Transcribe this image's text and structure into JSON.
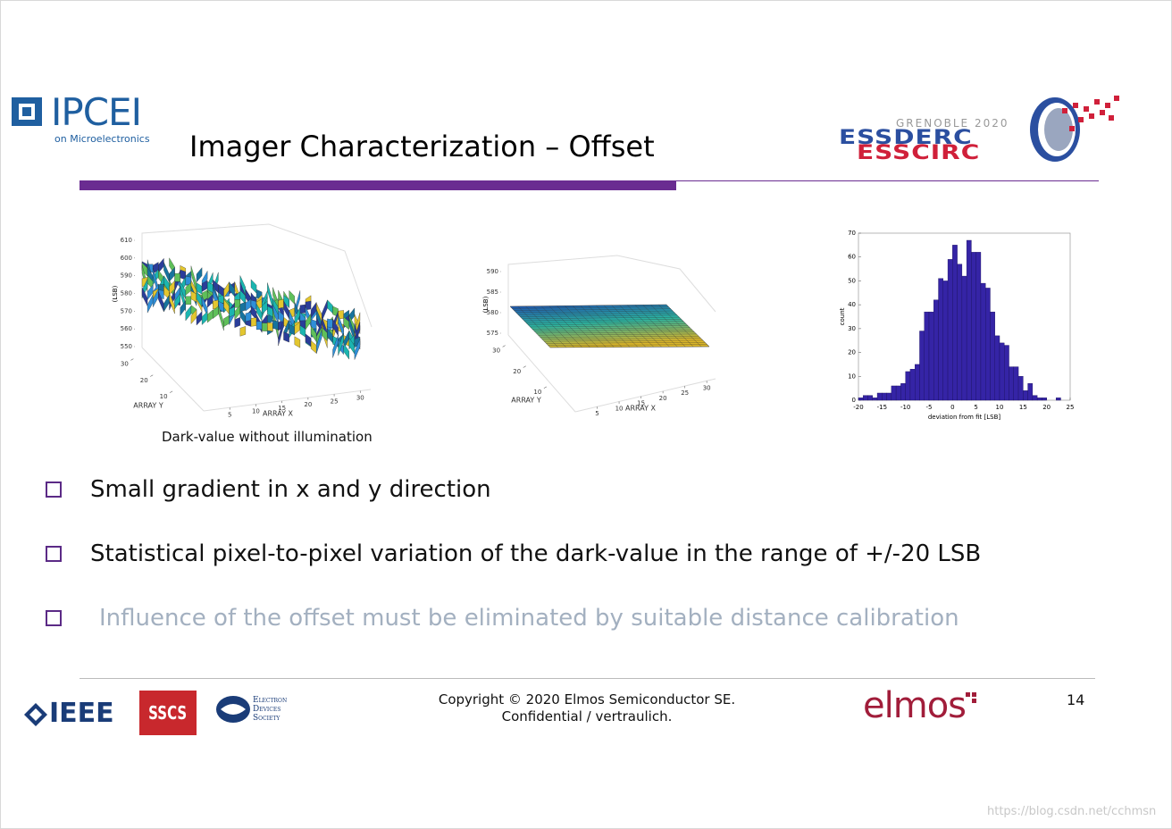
{
  "header": {
    "logo_left": {
      "name": "IPCEI",
      "subtitle": "on Microelectronics"
    },
    "title": "Imager Characterization – Offset",
    "logo_right": {
      "location": "GRENOBLE 2020",
      "line1": "ESSDERC",
      "line2": "ESSCIRC"
    }
  },
  "figures": [
    {
      "type": "surface",
      "zlabel": "(LSB)",
      "xlabel": "ARRAY X",
      "ylabel": "ARRAY Y",
      "zlim": [
        550,
        610
      ],
      "zticks": [
        550,
        560,
        570,
        580,
        590,
        600,
        610
      ],
      "xlim": [
        0,
        32
      ],
      "xticks": [
        5,
        10,
        15,
        20,
        25,
        30
      ],
      "ylim": [
        0,
        32
      ],
      "yticks": [
        10,
        20,
        30
      ]
    },
    {
      "type": "plane",
      "zlabel": "(LSB)",
      "xlabel": "ARRAY X",
      "ylabel": "ARRAY Y",
      "zlim": [
        575,
        590
      ],
      "zticks": [
        575,
        580,
        585,
        590
      ],
      "xlim": [
        0,
        32
      ],
      "xticks": [
        5,
        10,
        15,
        20,
        25,
        30
      ],
      "ylim": [
        0,
        32
      ],
      "yticks": [
        10,
        20,
        30
      ]
    }
  ],
  "caption": "Dark-value without illumination",
  "chart_data": {
    "type": "histogram",
    "xlabel": "deviation from fit [LSB]",
    "ylabel": "count",
    "bins": [
      -20,
      -19,
      -18,
      -17,
      -16,
      -15,
      -14,
      -13,
      -12,
      -11,
      -10,
      -9,
      -8,
      -7,
      -6,
      -5,
      -4,
      -3,
      -2,
      -1,
      0,
      1,
      2,
      3,
      4,
      5,
      6,
      7,
      8,
      9,
      10,
      11,
      12,
      13,
      14,
      15,
      16,
      17,
      18,
      19,
      20,
      21,
      22,
      23
    ],
    "values": [
      1,
      2,
      2,
      1,
      3,
      3,
      3,
      6,
      6,
      7,
      12,
      13,
      15,
      29,
      37,
      37,
      42,
      51,
      50,
      59,
      65,
      57,
      52,
      67,
      62,
      62,
      49,
      47,
      37,
      27,
      24,
      23,
      14,
      14,
      10,
      4,
      7,
      2,
      1,
      1,
      0,
      0,
      1
    ],
    "color": "#3524a6",
    "xlim": [
      -20,
      25
    ],
    "xticks": [
      -20,
      -15,
      -10,
      -5,
      0,
      5,
      10,
      15,
      20,
      25
    ],
    "ylim": [
      0,
      70
    ],
    "yticks": [
      0,
      10,
      20,
      30,
      40,
      50,
      60,
      70
    ]
  },
  "bullets": [
    "Small gradient in x and y direction",
    "Statistical pixel-to-pixel variation of the dark-value in the range of +/-20 LSB",
    "Influence of the offset must be eliminated by suitable distance calibration"
  ],
  "footer": {
    "ieee": "IEEE",
    "sscs": "SSCS",
    "eds": [
      "Electron",
      "Devices",
      "Society"
    ],
    "copyright": [
      "Copyright © 2020 Elmos Semiconductor SE.",
      "Confidential / vertraulich."
    ],
    "company": "elmos",
    "page_number": 14
  },
  "watermark": "https://blog.csdn.net/cchmsn"
}
